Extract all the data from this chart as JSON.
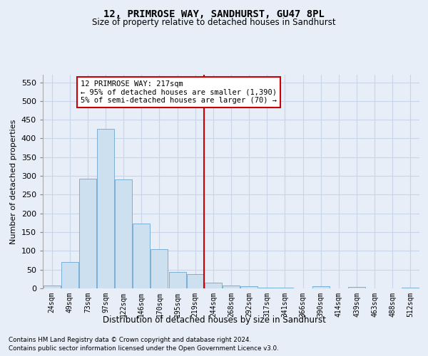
{
  "title": "12, PRIMROSE WAY, SANDHURST, GU47 8PL",
  "subtitle": "Size of property relative to detached houses in Sandhurst",
  "xlabel": "Distribution of detached houses by size in Sandhurst",
  "ylabel": "Number of detached properties",
  "categories": [
    "24sqm",
    "49sqm",
    "73sqm",
    "97sqm",
    "122sqm",
    "146sqm",
    "170sqm",
    "195sqm",
    "219sqm",
    "244sqm",
    "268sqm",
    "292sqm",
    "317sqm",
    "341sqm",
    "366sqm",
    "390sqm",
    "414sqm",
    "439sqm",
    "463sqm",
    "488sqm",
    "512sqm"
  ],
  "values": [
    7,
    70,
    292,
    425,
    290,
    173,
    105,
    43,
    38,
    15,
    8,
    5,
    2,
    1,
    0,
    5,
    0,
    3,
    0,
    0,
    2
  ],
  "bar_color": "#cce0f0",
  "bar_edge_color": "#7bafd4",
  "bar_edge_width": 0.7,
  "red_line_x": 8.5,
  "annotation_line1": "12 PRIMROSE WAY: 217sqm",
  "annotation_line2": "← 95% of detached houses are smaller (1,390)",
  "annotation_line3": "5% of semi-detached houses are larger (70) →",
  "annotation_box_facecolor": "#ffffff",
  "annotation_box_edgecolor": "#cc0000",
  "grid_color": "#c8d4e8",
  "background_color": "#e8eef8",
  "ylim": [
    0,
    570
  ],
  "yticks": [
    0,
    50,
    100,
    150,
    200,
    250,
    300,
    350,
    400,
    450,
    500,
    550
  ],
  "footnote1": "Contains HM Land Registry data © Crown copyright and database right 2024.",
  "footnote2": "Contains public sector information licensed under the Open Government Licence v3.0."
}
